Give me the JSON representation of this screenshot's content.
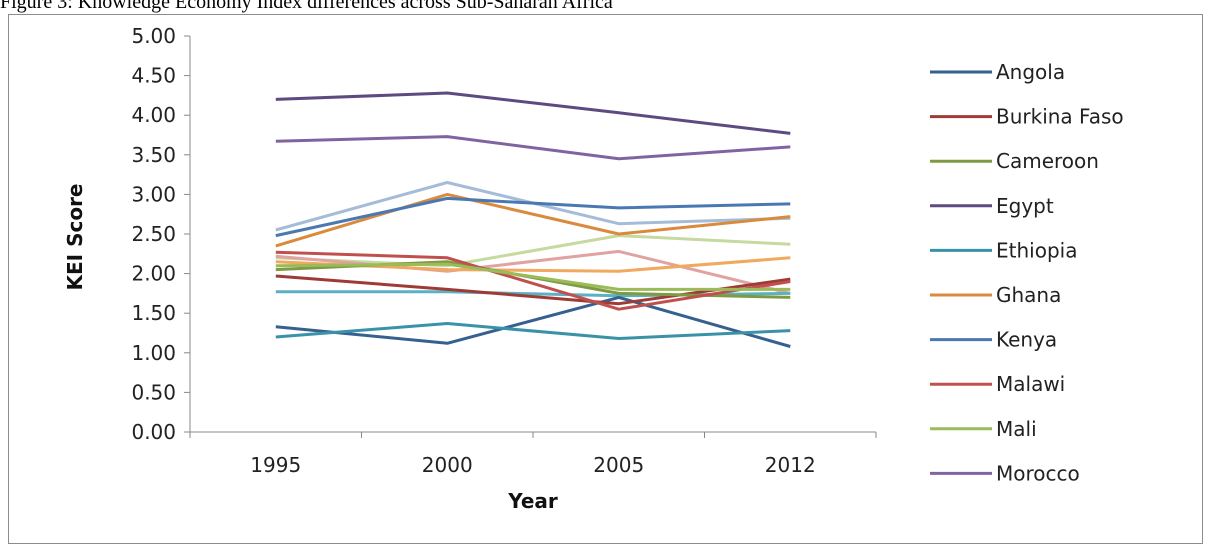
{
  "caption": "Figure 3: Knowledge Economy Index differences across Sub-Saharan Africa",
  "chart_data": {
    "type": "line",
    "title": "",
    "xlabel": "Year",
    "ylabel": "KEI Score",
    "categories": [
      "1995",
      "2000",
      "2005",
      "2012"
    ],
    "ylim": [
      0,
      5
    ],
    "yticks": [
      "0.00",
      "0.50",
      "1.00",
      "1.50",
      "2.00",
      "2.50",
      "3.00",
      "3.50",
      "4.00",
      "4.50",
      "5.00"
    ],
    "grid": false,
    "legend_position": "right",
    "series": [
      {
        "name": "Angola",
        "color": "#35608f",
        "values": [
          1.33,
          1.12,
          1.7,
          1.08
        ]
      },
      {
        "name": "Burkina Faso",
        "color": "#9e3b35",
        "values": [
          1.97,
          1.8,
          1.62,
          1.93
        ]
      },
      {
        "name": "Cameroon",
        "color": "#7e9a42",
        "values": [
          2.05,
          2.15,
          1.75,
          1.7
        ]
      },
      {
        "name": "Egypt",
        "color": "#5d4a80",
        "values": [
          4.2,
          4.28,
          4.03,
          3.77
        ]
      },
      {
        "name": "Ethiopia",
        "color": "#3a92a8",
        "values": [
          1.2,
          1.37,
          1.18,
          1.28
        ]
      },
      {
        "name": "Ghana",
        "color": "#d98a3c",
        "values": [
          2.35,
          3.0,
          2.5,
          2.72
        ]
      },
      {
        "name": "Kenya",
        "color": "#4a78b0",
        "values": [
          2.48,
          2.95,
          2.83,
          2.88
        ]
      },
      {
        "name": "Malawi",
        "color": "#c0504d",
        "values": [
          2.27,
          2.2,
          1.55,
          1.9
        ]
      },
      {
        "name": "Mali",
        "color": "#9bbb59",
        "values": [
          2.1,
          2.12,
          1.8,
          1.8
        ]
      },
      {
        "name": "Morocco",
        "color": "#8064a2",
        "values": [
          3.67,
          3.73,
          3.45,
          3.6
        ]
      }
    ],
    "extra_lines": [
      {
        "color": "#a5bcd8",
        "values": [
          2.55,
          3.15,
          2.63,
          2.7
        ]
      },
      {
        "color": "#c6d99f",
        "values": [
          2.2,
          2.1,
          2.48,
          2.37
        ]
      },
      {
        "color": "#e0a3a1",
        "values": [
          2.22,
          2.03,
          2.28,
          1.75
        ]
      },
      {
        "color": "#f0a95e",
        "values": [
          2.15,
          2.05,
          2.03,
          2.2
        ]
      },
      {
        "color": "#5bb0c4",
        "values": [
          1.77,
          1.77,
          1.72,
          1.75
        ]
      }
    ]
  }
}
